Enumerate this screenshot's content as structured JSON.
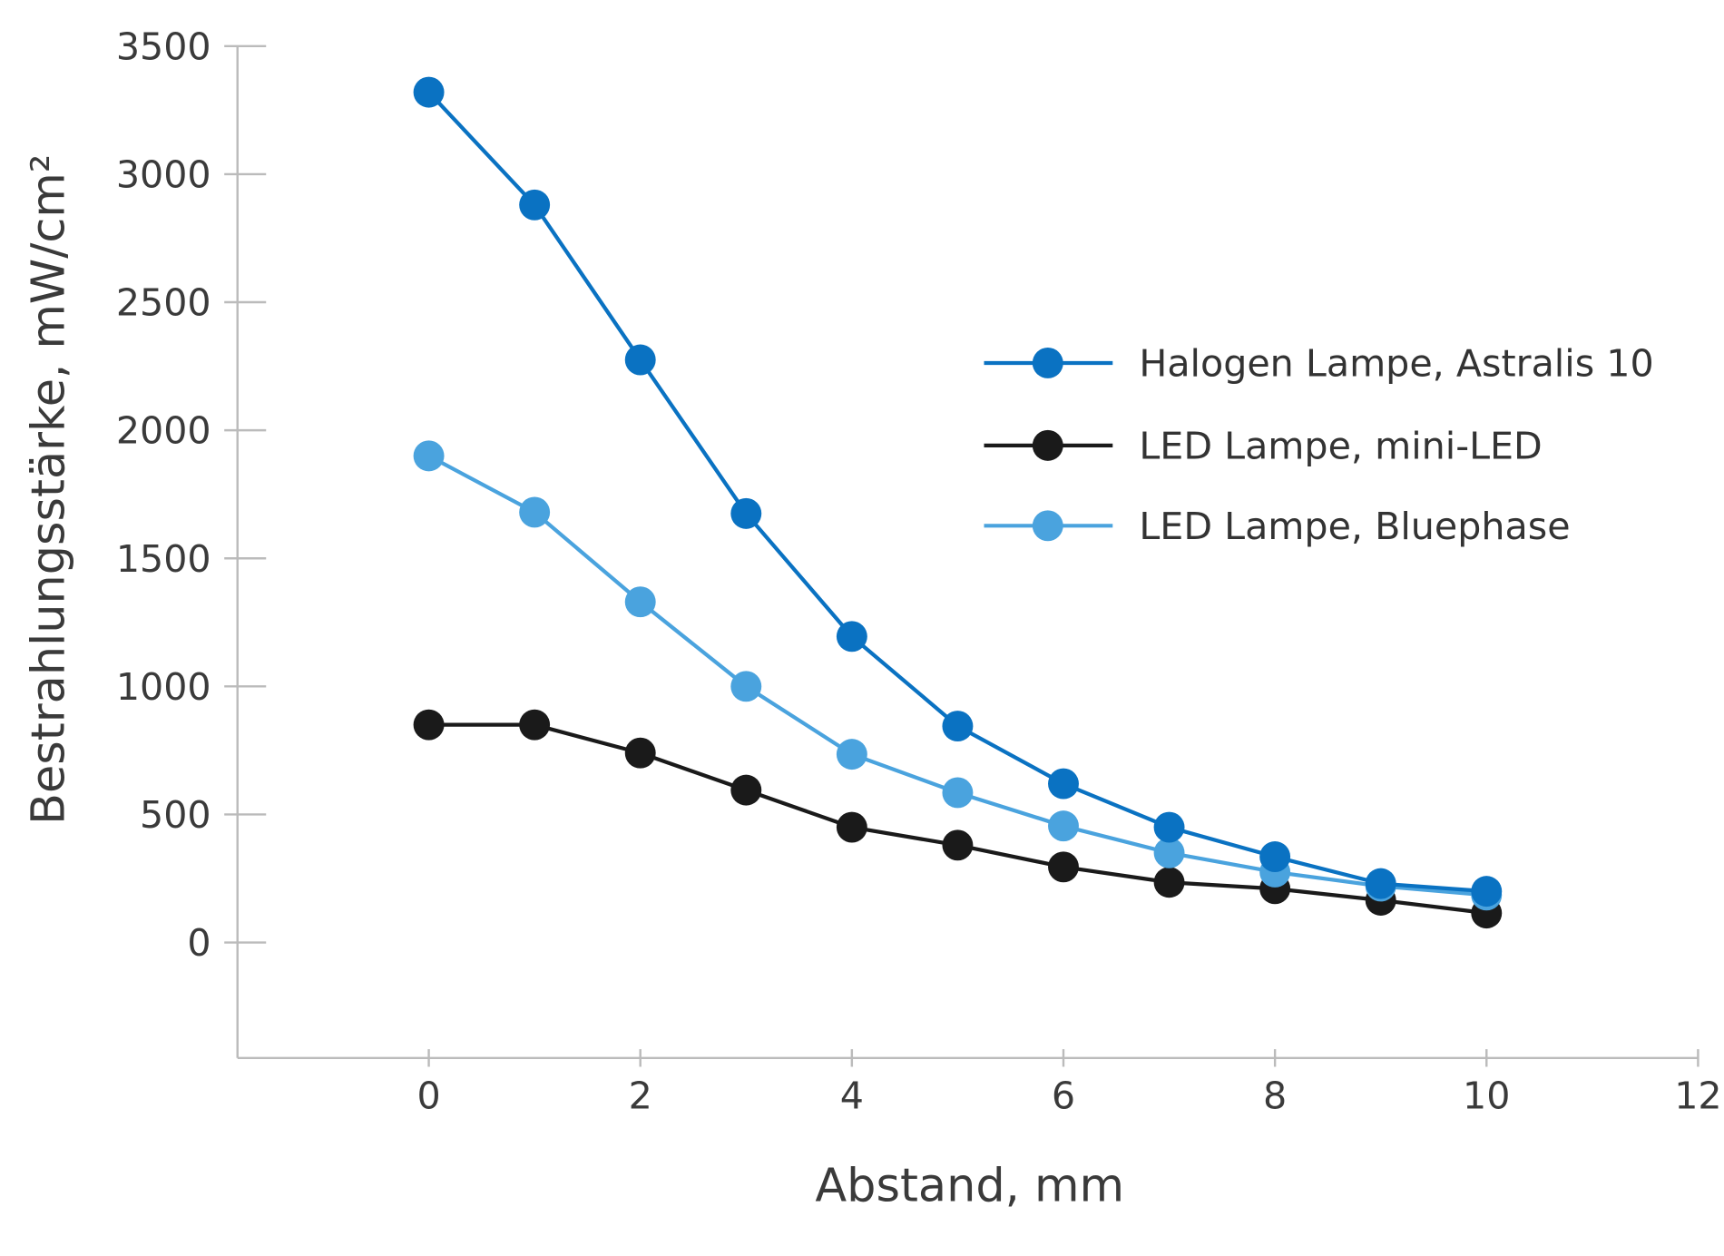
{
  "chart_data": {
    "type": "line",
    "title": "",
    "xlabel": "Abstand, mm",
    "ylabel": "Bestrahlungsstärke, mW/cm²",
    "xlim": [
      -1.8,
      12
    ],
    "ylim": [
      -450,
      3500
    ],
    "x_ticks": [
      0,
      2,
      4,
      6,
      8,
      10,
      12
    ],
    "y_ticks": [
      0,
      500,
      1000,
      1500,
      2000,
      2500,
      3000,
      3500
    ],
    "grid": false,
    "legend_position": "right",
    "x": [
      0,
      1,
      2,
      3,
      4,
      5,
      6,
      7,
      8,
      9,
      10
    ],
    "series": [
      {
        "name": "Halogen Lampe, Astralis 10",
        "color": "#0a72c2",
        "values": [
          3320,
          2880,
          2275,
          1675,
          1195,
          845,
          620,
          450,
          335,
          230,
          200
        ]
      },
      {
        "name": "LED Lampe, mini-LED",
        "color": "#1a1a1a",
        "values": [
          850,
          850,
          740,
          595,
          450,
          380,
          295,
          235,
          210,
          165,
          115
        ]
      },
      {
        "name": "LED Lampe, Bluephase",
        "color": "#4aa3de",
        "values": [
          1900,
          1680,
          1330,
          1000,
          735,
          585,
          455,
          350,
          275,
          220,
          185
        ]
      }
    ]
  }
}
